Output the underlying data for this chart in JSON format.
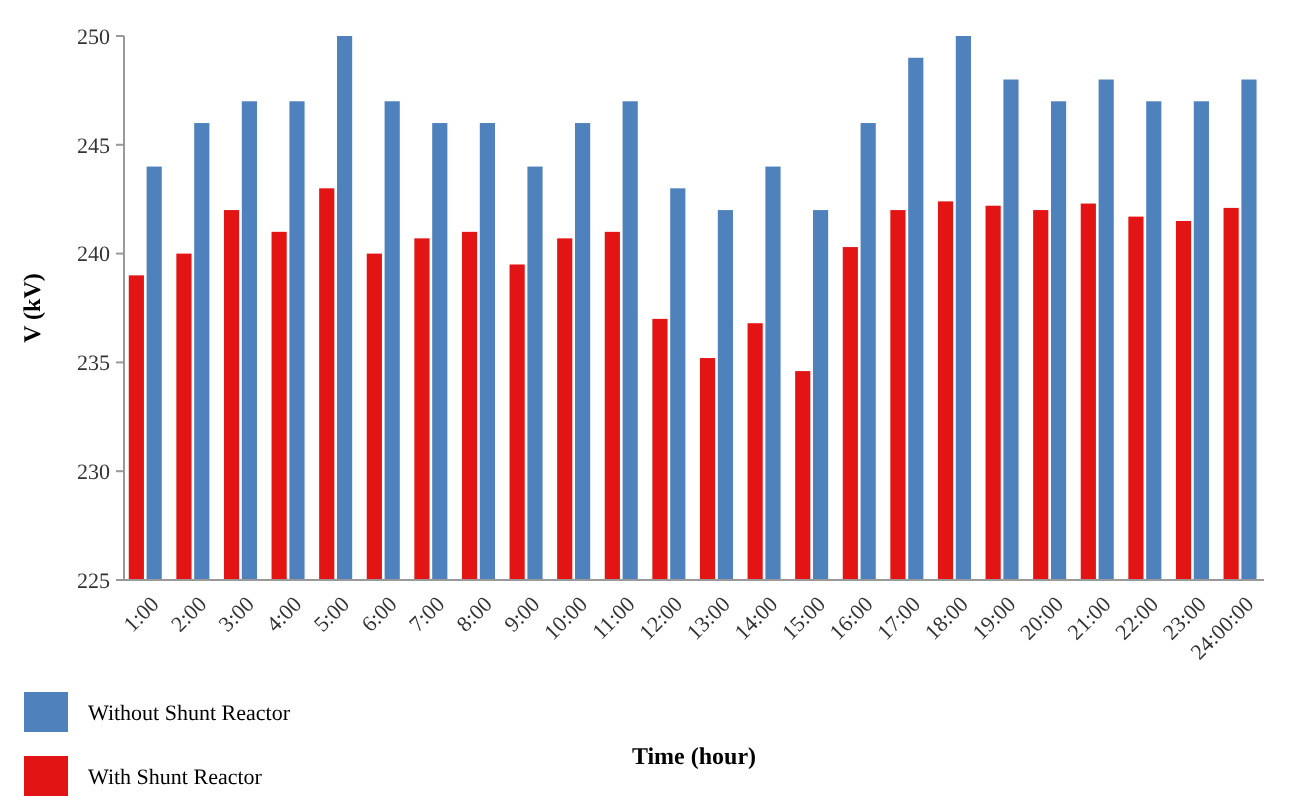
{
  "chart_data": {
    "type": "bar",
    "xlabel": "Time (hour)",
    "ylabel": "V (kV)",
    "categories": [
      "1:00",
      "2:00",
      "3:00",
      "4:00",
      "5:00",
      "6:00",
      "7:00",
      "8:00",
      "9:00",
      "10:00",
      "11:00",
      "12:00",
      "13:00",
      "14:00",
      "15:00",
      "16:00",
      "17:00",
      "18:00",
      "19:00",
      "20:00",
      "21:00",
      "22:00",
      "23:00",
      "24:00:00"
    ],
    "series": [
      {
        "name": "With Shunt Reactor",
        "color": "#e31414",
        "values": [
          239,
          240,
          242,
          241,
          243,
          240,
          240.7,
          241,
          239.5,
          240.7,
          241,
          237,
          235.2,
          236.8,
          234.6,
          240.3,
          242,
          242.4,
          242.2,
          242,
          242.3,
          241.7,
          241.5,
          242.1
        ]
      },
      {
        "name": "Without  Shunt Reactor",
        "color": "#4f81bd",
        "values": [
          244,
          246,
          247,
          247,
          250,
          247,
          246,
          246,
          244,
          246,
          247,
          243,
          242,
          244,
          242,
          246,
          249,
          250,
          248,
          247,
          248,
          247,
          247,
          248
        ]
      }
    ],
    "ylim": [
      225,
      250
    ],
    "yticks": [
      225,
      230,
      235,
      240,
      245,
      250
    ],
    "grid": false,
    "legend": "bottom left"
  }
}
